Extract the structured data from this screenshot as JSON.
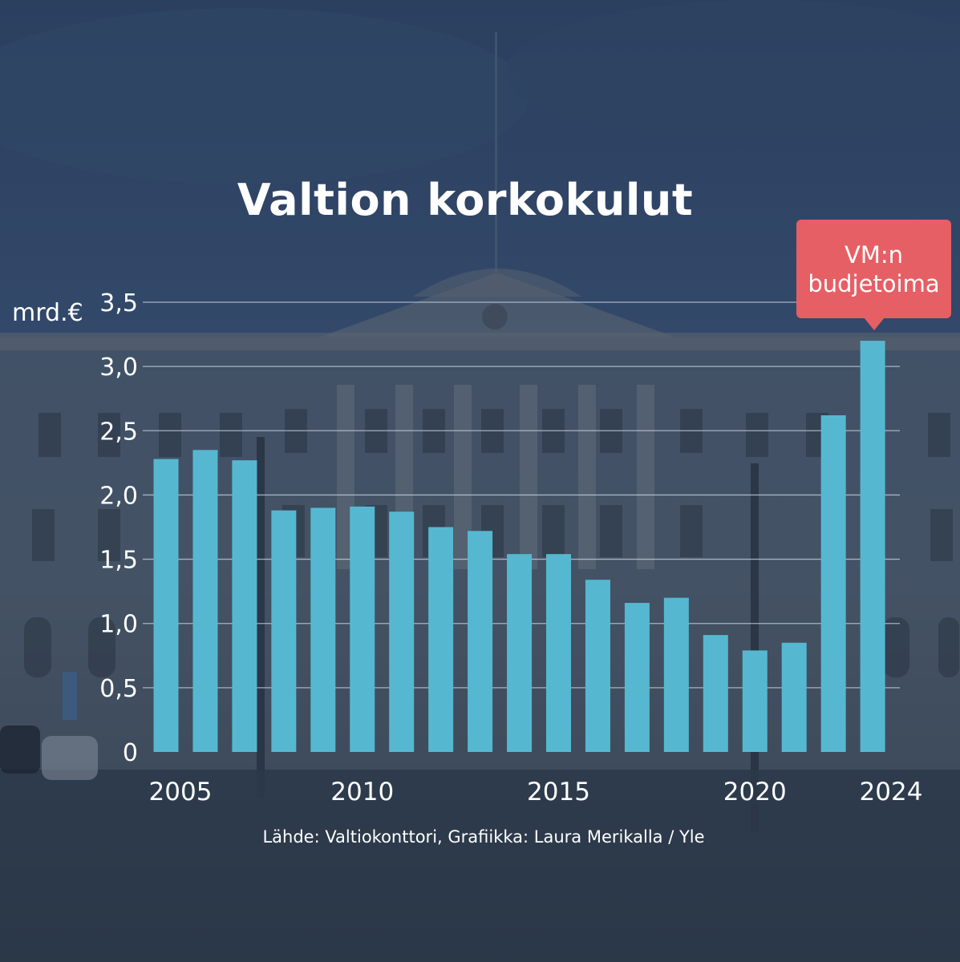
{
  "chart_data": {
    "type": "bar",
    "title": "Valtion korkokulut",
    "ylabel": "mrd.€",
    "ylim": [
      0,
      3.5
    ],
    "yticks": [
      "0",
      "0,5",
      "1,0",
      "1,5",
      "2,0",
      "2,5",
      "3,0",
      "3,5"
    ],
    "yticks_values": [
      0,
      0.5,
      1.0,
      1.5,
      2.0,
      2.5,
      3.0,
      3.5
    ],
    "grid": true,
    "categories": [
      "2005",
      "2006",
      "2007",
      "2008",
      "2009",
      "2010",
      "2011",
      "2012",
      "2013",
      "2014",
      "2015",
      "2016",
      "2017",
      "2018",
      "2019",
      "2020",
      "2021",
      "2022",
      "2023",
      "2024"
    ],
    "values": [
      2.28,
      2.35,
      2.27,
      1.88,
      1.9,
      1.91,
      1.87,
      1.75,
      1.72,
      1.54,
      1.54,
      1.34,
      1.16,
      1.2,
      0.91,
      0.79,
      0.85,
      2.62,
      3.2,
      null
    ],
    "xtick_labels": [
      {
        "year": "2005",
        "label": "2005"
      },
      {
        "year": "2010",
        "label": "2010"
      },
      {
        "year": "2015",
        "label": "2015"
      },
      {
        "year": "2020",
        "label": "2020"
      },
      {
        "year": "2024",
        "label": "2024"
      }
    ],
    "annotation": {
      "line1": "VM:n",
      "line2": "budjetoima",
      "category": "2023",
      "color": "#e65f65"
    },
    "bar_color": "#55b8d0",
    "source": "Lähde: Valtiokonttori, Grafiikka: Laura Merikalla / Yle"
  }
}
